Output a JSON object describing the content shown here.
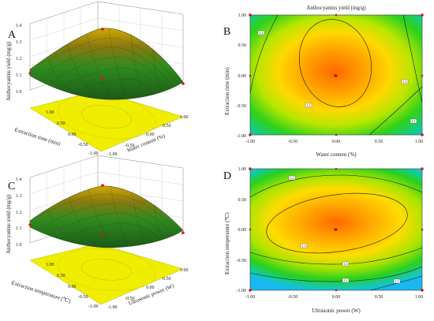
{
  "figure": {
    "panels": [
      {
        "id": "A",
        "label": "A"
      },
      {
        "id": "B",
        "label": "B"
      },
      {
        "id": "C",
        "label": "C"
      },
      {
        "id": "D",
        "label": "D"
      }
    ]
  },
  "colors": {
    "surface_low": "#2b6b1c",
    "surface_high": "#d4b400",
    "floor": "#f0ee00",
    "contour_low": "#19c8f0",
    "contour_mid": "#1fd000",
    "contour_high": "#ff6a00",
    "design_point": "#d8121a"
  },
  "chart_data": [
    {
      "id": "A",
      "type": "surface3d",
      "xlabel": "Water content (%)",
      "ylabel": "Extraction time (min)",
      "zlabel": "Anthocyanins yield (mg/g)",
      "x_ticks": [
        "-1.00",
        "-0.50",
        "0.00",
        "0.50",
        "1.00"
      ],
      "y_ticks": [
        "-1.00",
        "-0.50",
        "0.00",
        "0.50",
        "1.00"
      ],
      "z_ticks": [
        "1.0",
        "1.1",
        "1.2",
        "1.3",
        "1.4"
      ],
      "xlim": [
        -1,
        1
      ],
      "ylim": [
        -1,
        1
      ],
      "zlim": [
        1.0,
        1.4
      ],
      "grid": true,
      "design_points": [
        {
          "x": -1,
          "y": 1,
          "z": 1.38
        },
        {
          "x": 0,
          "y": 0,
          "z": 1.29
        },
        {
          "x": -1,
          "y": -1,
          "z": 1.15
        },
        {
          "x": 1,
          "y": -1,
          "z": 1.12
        }
      ]
    },
    {
      "id": "B",
      "type": "contour",
      "title": "Anthocyanins yield (mg/g)",
      "xlabel": "Water content (%)",
      "ylabel": "Extraction time (min)",
      "x_ticks": [
        "-1.00",
        "-0.50",
        "0.00",
        "0.50",
        "1.00"
      ],
      "y_ticks": [
        "-1.00",
        "-0.50",
        "0.00",
        "0.50",
        "1.00"
      ],
      "xlim": [
        -1,
        1
      ],
      "ylim": [
        -1,
        1
      ],
      "center": {
        "x": 0,
        "y": 0
      },
      "contour_labels": [
        "1.2",
        "1.3",
        "1.3",
        "1.1"
      ],
      "design_points": [
        {
          "x": -1,
          "y": 1
        },
        {
          "x": 1,
          "y": 1
        },
        {
          "x": -1,
          "y": -1
        },
        {
          "x": 1,
          "y": -1
        },
        {
          "x": 0,
          "y": 0
        }
      ]
    },
    {
      "id": "C",
      "type": "surface3d",
      "xlabel": "Ultrasonic power (W)",
      "ylabel": "Extraction temperature (℃)",
      "zlabel": "Anthocyanins yield (mg/g)",
      "x_ticks": [
        "-1.00",
        "-0.50",
        "0.00",
        "0.50",
        "1.00"
      ],
      "y_ticks": [
        "-1.00",
        "-0.50",
        "0.00",
        "0.50",
        "1.00"
      ],
      "z_ticks": [
        "1.0",
        "1.1",
        "1.2",
        "1.3",
        "1.4"
      ],
      "xlim": [
        -1,
        1
      ],
      "ylim": [
        -1,
        1
      ],
      "zlim": [
        1.0,
        1.4
      ],
      "grid": true,
      "design_points": [
        {
          "x": -1,
          "y": 1,
          "z": 1.36
        },
        {
          "x": 0,
          "y": 0,
          "z": 1.28
        },
        {
          "x": -1,
          "y": -1,
          "z": 1.13
        },
        {
          "x": 1,
          "y": -1,
          "z": 1.12
        }
      ]
    },
    {
      "id": "D",
      "type": "contour",
      "xlabel": "Ultrasonic power (W)",
      "ylabel": "Extraction temperature (℃)",
      "x_ticks": [
        "-1.00",
        "-0.50",
        "0.00",
        "0.50",
        "1.00"
      ],
      "y_ticks": [
        "-1.00",
        "-0.50",
        "0.00",
        "0.50",
        "1.00"
      ],
      "xlim": [
        -1,
        1
      ],
      "ylim": [
        -1,
        1
      ],
      "center": {
        "x": 0,
        "y": 0
      },
      "contour_labels": [
        "1.2",
        "1.3",
        "1.2",
        "1.1",
        "1.1"
      ],
      "design_points": [
        {
          "x": -1,
          "y": 1
        },
        {
          "x": 1,
          "y": 1
        },
        {
          "x": -1,
          "y": -1
        },
        {
          "x": 1,
          "y": -1
        },
        {
          "x": 0,
          "y": 0
        }
      ]
    }
  ]
}
